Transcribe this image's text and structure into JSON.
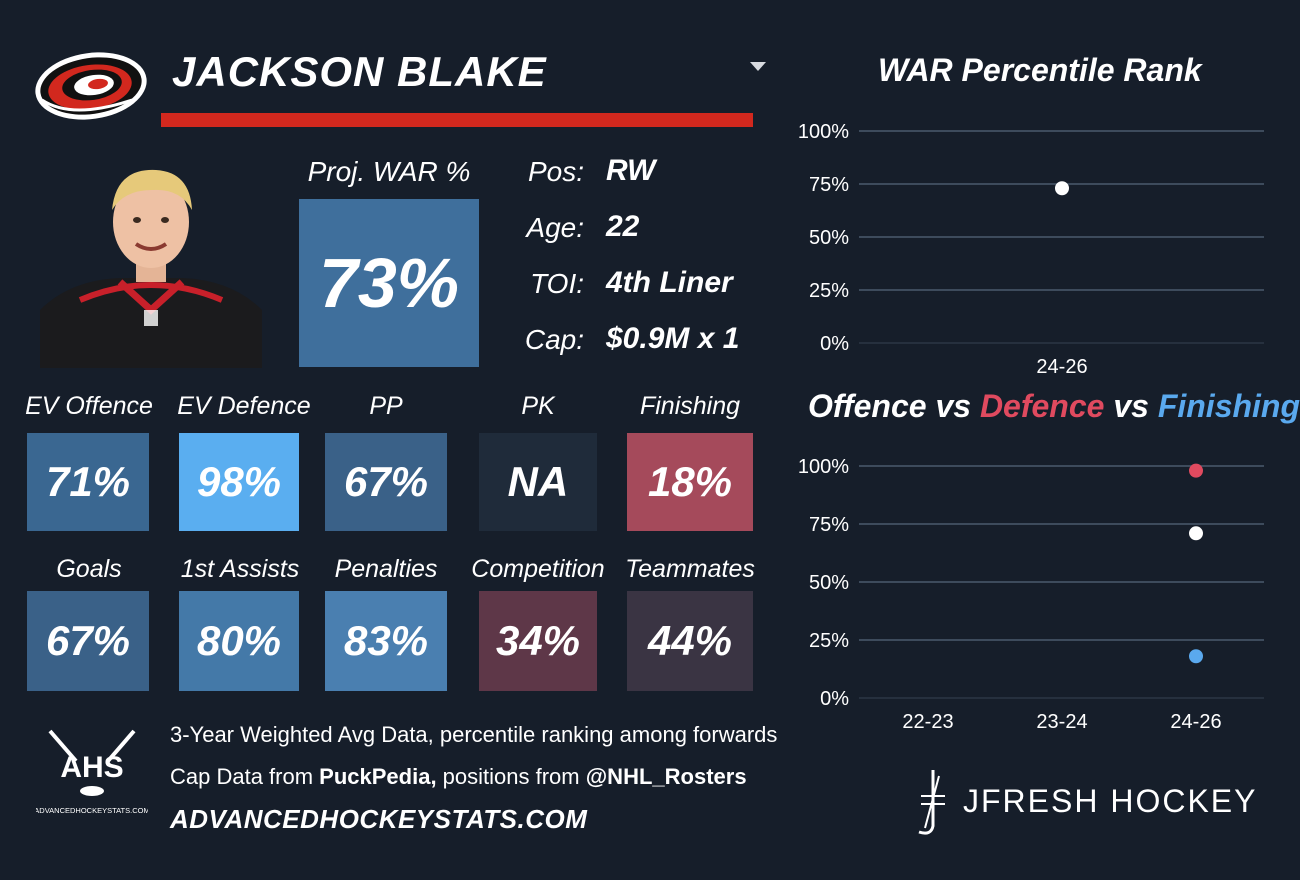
{
  "header": {
    "player_name": "JACKSON BLAKE"
  },
  "colors": {
    "background": "#161e2a",
    "accent_red": "#d2281e",
    "offence": "#ffffff",
    "defence": "#e04a5f",
    "finishing": "#5aa9ee"
  },
  "projected": {
    "label": "Proj. WAR %",
    "value": "73%"
  },
  "info": [
    {
      "key": "Pos:",
      "value": "RW"
    },
    {
      "key": "Age:",
      "value": "22"
    },
    {
      "key": "TOI:",
      "value": "4th Liner"
    },
    {
      "key": "Cap:",
      "value": "$0.9M x 1"
    }
  ],
  "row1": [
    {
      "label": "EV Offence",
      "value": "71%",
      "color": "#3a6791"
    },
    {
      "label": "EV Defence",
      "value": "98%",
      "color": "#5aaef0"
    },
    {
      "label": "PP",
      "value": "67%",
      "color": "#3a6188"
    },
    {
      "label": "PK",
      "value": "NA",
      "color": "#1f2b3a"
    },
    {
      "label": "Finishing",
      "value": "18%",
      "color": "#a54a5b"
    }
  ],
  "row2": [
    {
      "label": "Goals",
      "value": "67%",
      "color": "#3a6188"
    },
    {
      "label": "1st Assists",
      "value": "80%",
      "color": "#4479a8"
    },
    {
      "label": "Penalties",
      "value": "83%",
      "color": "#4a7fb0"
    },
    {
      "label": "Competition",
      "value": "34%",
      "color": "#5e3748"
    },
    {
      "label": "Teammates",
      "value": "44%",
      "color": "#3a3443"
    }
  ],
  "footer": {
    "line1": "3-Year Weighted Avg Data, percentile ranking among forwards",
    "line2_prefix": "Cap Data from ",
    "line2_source1": "PuckPedia,",
    "line2_mid": " positions from ",
    "line2_source2": "@NHL_Rosters",
    "url": "ADVANCEDHOCKEYSTATS.COM",
    "ahs_logo_text": "AHS",
    "ahs_logo_sub": "ADVANCEDHOCKEYSTATS.COM",
    "brand": "JFRESH HOCKEY"
  },
  "chart_data": [
    {
      "type": "scatter",
      "title": "WAR Percentile Rank",
      "categories": [
        "24-26"
      ],
      "yticks": [
        "0%",
        "25%",
        "50%",
        "75%",
        "100%"
      ],
      "ylim": [
        0,
        100
      ],
      "grid": true,
      "series": [
        {
          "values": [
            73
          ],
          "color": "#ffffff"
        }
      ]
    },
    {
      "type": "scatter",
      "title_parts": [
        "Offence",
        " vs ",
        "Defence",
        " vs ",
        "Finishing"
      ],
      "categories": [
        "22-23",
        "23-24",
        "24-26"
      ],
      "yticks": [
        "0%",
        "25%",
        "50%",
        "75%",
        "100%"
      ],
      "ylim": [
        0,
        100
      ],
      "grid": true,
      "series": [
        {
          "name": "Offence",
          "values": [
            null,
            null,
            71
          ],
          "color": "#ffffff"
        },
        {
          "name": "Defence",
          "values": [
            null,
            null,
            98
          ],
          "color": "#e04a5f"
        },
        {
          "name": "Finishing",
          "values": [
            null,
            null,
            18
          ],
          "color": "#5aa9ee"
        }
      ]
    }
  ]
}
